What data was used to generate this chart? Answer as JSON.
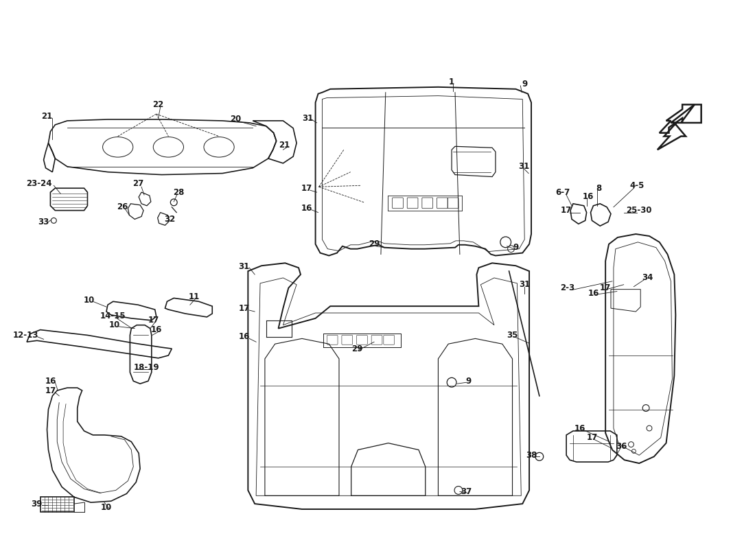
{
  "bg_color": "#ffffff",
  "line_color": "#1a1a1a",
  "label_color": "#1a1a1a",
  "label_fontsize": 8.5,
  "label_fontweight": "bold",
  "figsize": [
    11.0,
    8.0
  ],
  "dpi": 100
}
